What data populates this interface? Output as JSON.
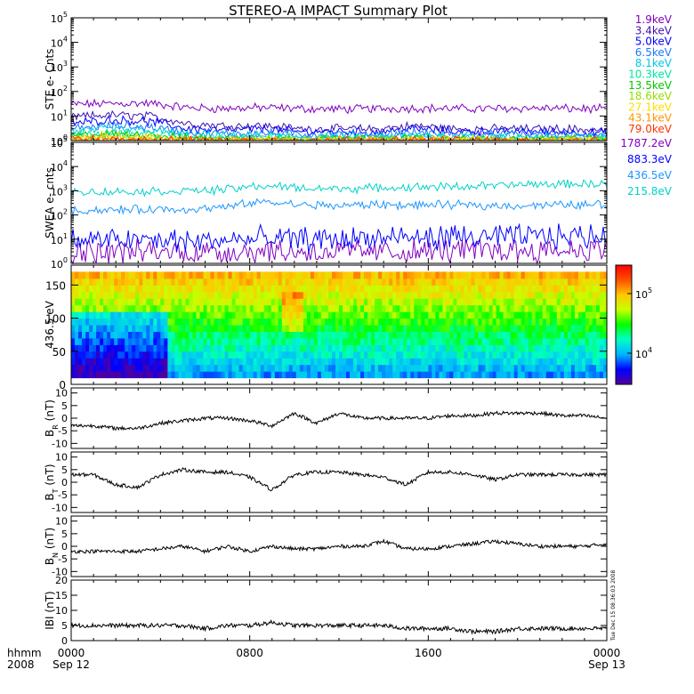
{
  "title": "STEREO-A IMPACT Summary Plot",
  "side_note": "Tue Dec 15 08:36:03 2008",
  "time_axis": {
    "corner_top": "hhmm",
    "corner_bottom": "2008",
    "ticks": [
      {
        "hour": 0,
        "top": "0000",
        "bottom": "Sep 12"
      },
      {
        "hour": 8,
        "top": "0800",
        "bottom": ""
      },
      {
        "hour": 16,
        "top": "1600",
        "bottom": ""
      },
      {
        "hour": 24,
        "top": "0000",
        "bottom": "Sep 13"
      }
    ],
    "range_hours": [
      0,
      24
    ]
  },
  "colors": {
    "axes": "#000000",
    "colorbar_stops": [
      "#5000a0",
      "#0000ff",
      "#00b4ff",
      "#00ffc8",
      "#00ff00",
      "#c8ff00",
      "#ffc800",
      "#ff5000",
      "#ff0000"
    ]
  },
  "chart_data": [
    {
      "id": "ste",
      "type": "line",
      "ylabel": "STE e- Cnts",
      "yscale": "log",
      "ylim": [
        1,
        100000
      ],
      "ytick_exponents": [
        0,
        1,
        2,
        3,
        4,
        5
      ],
      "series": [
        {
          "name": "1.9keV",
          "color": "#8000c0",
          "level": [
            30,
            32,
            33,
            22,
            20,
            22,
            20,
            19,
            20,
            21,
            20,
            20,
            21,
            20,
            19
          ]
        },
        {
          "name": "3.4keV",
          "color": "#3c14b4",
          "level": [
            9,
            11,
            10,
            5,
            4,
            4,
            3,
            3,
            3,
            4,
            3,
            3,
            3,
            3,
            2.6
          ]
        },
        {
          "name": "5.0keV",
          "color": "#0000ff",
          "level": [
            5,
            7,
            6,
            3,
            2.6,
            3,
            2.3,
            2.4,
            2.2,
            3,
            2.4,
            2.3,
            2.4,
            2.2,
            2
          ]
        },
        {
          "name": "6.5keV",
          "color": "#1e78ff",
          "level": [
            3,
            4,
            3.6,
            2.2,
            1.9,
            2,
            1.8,
            1.8,
            1.7,
            2.1,
            1.8,
            1.8,
            1.8,
            1.7,
            1.6
          ]
        },
        {
          "name": "8.1keV",
          "color": "#00c8e6",
          "level": [
            2.2,
            3,
            2.6,
            1.7,
            1.5,
            1.6,
            1.4,
            1.4,
            1.4,
            1.6,
            1.4,
            1.4,
            1.4,
            1.4,
            1.3
          ]
        },
        {
          "name": "10.3keV",
          "color": "#00e6a0",
          "level": [
            1.8,
            2.2,
            2,
            1.4,
            1.3,
            1.4,
            1.2,
            1.3,
            1.2,
            1.4,
            1.3,
            1.2,
            1.3,
            1.2,
            1.2
          ]
        },
        {
          "name": "13.5keV",
          "color": "#00c800",
          "level": [
            1.5,
            1.8,
            1.7,
            1.2,
            1.2,
            1.2,
            1.1,
            1.1,
            1.1,
            1.2,
            1.1,
            1.1,
            1.1,
            1.1,
            1.1
          ]
        },
        {
          "name": "18.6keV",
          "color": "#96dc00",
          "level": [
            1.3,
            1.5,
            1.4,
            1.1,
            1.1,
            1.1,
            1.05,
            1.05,
            1.05,
            1.1,
            1.05,
            1.05,
            1.05,
            1.05,
            1.05
          ]
        },
        {
          "name": "27.1keV",
          "color": "#ffdc00",
          "level": [
            1.2,
            1.3,
            1.3,
            1.05,
            1.05,
            1.05,
            1,
            1,
            1,
            1.05,
            1,
            1,
            1,
            1,
            1
          ]
        },
        {
          "name": "43.1keV",
          "color": "#ff9600",
          "level": [
            1.1,
            1.2,
            1.2,
            1,
            1,
            1,
            1,
            1,
            1,
            1,
            1,
            1,
            1,
            1,
            1
          ]
        },
        {
          "name": "79.0keV",
          "color": "#ff3200",
          "level": [
            1.05,
            1.1,
            1.1,
            1,
            1,
            1,
            1,
            1,
            1,
            1,
            1,
            1,
            1,
            1,
            1
          ]
        }
      ]
    },
    {
      "id": "swea",
      "type": "line",
      "ylabel": "SWEA e- cnts",
      "yscale": "log",
      "ylim": [
        1,
        100000
      ],
      "ytick_exponents": [
        0,
        1,
        2,
        3,
        4,
        5
      ],
      "series": [
        {
          "name": "1787.2eV",
          "color": "#8000c0",
          "level": [
            3,
            3,
            3,
            3,
            3,
            3.5,
            3,
            3,
            3,
            3,
            3.5,
            3.5,
            3.5,
            3.5,
            4
          ]
        },
        {
          "name": "883.3eV",
          "color": "#0000ff",
          "level": [
            9,
            9,
            9,
            8,
            9,
            10,
            10,
            10,
            11,
            11,
            12,
            12,
            13,
            13,
            14
          ]
        },
        {
          "name": "436.5eV",
          "color": "#1e96ff",
          "level": [
            150,
            160,
            170,
            170,
            200,
            350,
            260,
            240,
            270,
            250,
            260,
            240,
            250,
            260,
            280
          ]
        },
        {
          "name": "215.8eV",
          "color": "#00d2c8",
          "level": [
            900,
            900,
            950,
            1000,
            1100,
            1600,
            1300,
            1200,
            1300,
            1400,
            1500,
            1600,
            1800,
            1900,
            2000
          ]
        }
      ]
    },
    {
      "id": "pad",
      "type": "heatmap",
      "ylabel": "436.5 eV",
      "ylim": [
        0,
        180
      ],
      "yticks": [
        0,
        50,
        100,
        150
      ],
      "colorbar": {
        "scale": "log",
        "range": [
          3000,
          300000
        ],
        "labels": [
          {
            "exp": "4",
            "value": 10000
          },
          {
            "exp": "5",
            "value": 100000
          }
        ]
      }
    },
    {
      "id": "br",
      "type": "line",
      "ylabel": "B",
      "ylabel_sub": "R",
      "ylabel_unit": "(nT)",
      "ylim": [
        -12,
        12
      ],
      "yticks": [
        -10,
        -5,
        0,
        5,
        10
      ],
      "x_hours": [
        0,
        1,
        2,
        3,
        4,
        5,
        6,
        7,
        8,
        9,
        10,
        11,
        12,
        13,
        14,
        15,
        16,
        17,
        18,
        19,
        20,
        21,
        22,
        23,
        24
      ],
      "y": [
        -3,
        -3,
        -4,
        -4,
        -2,
        -1,
        0,
        0,
        -1,
        -3,
        2,
        -2,
        2,
        0,
        0,
        0,
        0,
        1,
        1,
        2,
        2,
        2,
        1,
        1,
        0
      ]
    },
    {
      "id": "bt",
      "type": "line",
      "ylabel": "B",
      "ylabel_sub": "T",
      "ylabel_unit": "(nT)",
      "ylim": [
        -12,
        12
      ],
      "yticks": [
        -10,
        -5,
        0,
        5,
        10
      ],
      "x_hours": [
        0,
        1,
        2,
        3,
        4,
        5,
        6,
        7,
        8,
        9,
        10,
        11,
        12,
        13,
        14,
        15,
        16,
        17,
        18,
        19,
        20,
        21,
        22,
        23,
        24
      ],
      "y": [
        3,
        3,
        -1,
        -2,
        3,
        5,
        4,
        4,
        2,
        -3,
        3,
        4,
        4,
        3,
        2,
        -1,
        4,
        4,
        3,
        1,
        3,
        3,
        3,
        3,
        3
      ]
    },
    {
      "id": "bn",
      "type": "line",
      "ylabel": "B",
      "ylabel_sub": "N",
      "ylabel_unit": "(nT)",
      "ylim": [
        -12,
        12
      ],
      "yticks": [
        -10,
        -5,
        0,
        5,
        10
      ],
      "x_hours": [
        0,
        1,
        2,
        3,
        4,
        5,
        6,
        7,
        8,
        9,
        10,
        11,
        12,
        13,
        14,
        15,
        16,
        17,
        18,
        19,
        20,
        21,
        22,
        23,
        24
      ],
      "y": [
        -2,
        -2,
        -2,
        -2,
        -1,
        0,
        -2,
        0,
        -2,
        0,
        -1,
        -1,
        0,
        0,
        2,
        -1,
        -1,
        0,
        1,
        2,
        1,
        0,
        0,
        0,
        1
      ]
    },
    {
      "id": "bmag",
      "type": "line",
      "ylabel": "IBI",
      "ylabel_unit": "(nT)",
      "ylim": [
        0,
        20
      ],
      "yticks": [
        0,
        5,
        10,
        15,
        20
      ],
      "x_hours": [
        0,
        1,
        2,
        3,
        4,
        5,
        6,
        7,
        8,
        9,
        10,
        11,
        12,
        13,
        14,
        15,
        16,
        17,
        18,
        19,
        20,
        21,
        22,
        23,
        24
      ],
      "y": [
        5,
        5,
        5,
        5,
        5,
        5,
        4,
        5,
        5,
        6,
        5,
        5,
        5,
        5,
        5,
        4,
        4,
        4,
        3,
        3,
        4,
        4,
        4,
        4,
        4
      ]
    }
  ]
}
